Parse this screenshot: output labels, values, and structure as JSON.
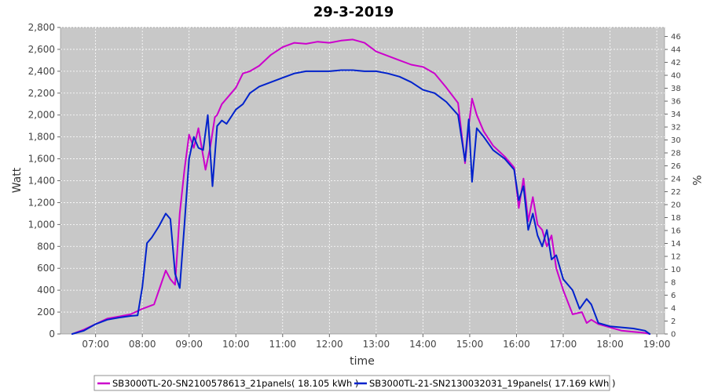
{
  "chart_data": {
    "type": "line",
    "title": "29-3-2019",
    "xlabel": "time",
    "ylabel": "Watt",
    "y2label": "%",
    "xlim": [
      6.25,
      19.1667
    ],
    "ylim": [
      0,
      2800
    ],
    "y2lim": [
      0,
      47.4
    ],
    "x_ticks": [
      7,
      8,
      9,
      10,
      11,
      12,
      13,
      14,
      15,
      16,
      17,
      18,
      19
    ],
    "x_tick_labels": [
      "07:00",
      "08:00",
      "09:00",
      "10:00",
      "11:00",
      "12:00",
      "13:00",
      "14:00",
      "15:00",
      "16:00",
      "17:00",
      "18:00",
      "19:00"
    ],
    "y_ticks": [
      0,
      200,
      400,
      600,
      800,
      1000,
      1200,
      1400,
      1600,
      1800,
      2000,
      2200,
      2400,
      2600,
      2800
    ],
    "y_tick_labels": [
      "0",
      "200",
      "400",
      "600",
      "800",
      "1,000",
      "1,200",
      "1,400",
      "1,600",
      "1,800",
      "2,000",
      "2,200",
      "2,400",
      "2,600",
      "2,800"
    ],
    "y2_ticks": [
      0,
      2,
      4,
      6,
      8,
      10,
      12,
      14,
      16,
      18,
      20,
      22,
      24,
      26,
      28,
      30,
      32,
      34,
      36,
      38,
      40,
      42,
      44,
      46
    ],
    "y2_tick_labels": [
      "0",
      "2",
      "4",
      "6",
      "8",
      "10",
      "12",
      "14",
      "16",
      "18",
      "20",
      "22",
      "24",
      "26",
      "28",
      "30",
      "32",
      "34",
      "36",
      "38",
      "40",
      "42",
      "44",
      "46"
    ],
    "grid": true,
    "legend_position": "bottom",
    "series": [
      {
        "name": "SB3000TL-20-SN2100578613_21panels( 18.105 kWh )",
        "color": "#cc00cc",
        "x": [
          6.5,
          6.75,
          7.0,
          7.25,
          7.5,
          7.75,
          8.0,
          8.25,
          8.5,
          8.6,
          8.7,
          8.8,
          8.9,
          9.0,
          9.1,
          9.2,
          9.25,
          9.35,
          9.45,
          9.55,
          9.6,
          9.7,
          9.8,
          10.0,
          10.15,
          10.3,
          10.5,
          10.75,
          11.0,
          11.25,
          11.5,
          11.75,
          12.0,
          12.25,
          12.5,
          12.75,
          13.0,
          13.25,
          13.5,
          13.75,
          14.0,
          14.25,
          14.5,
          14.75,
          14.9,
          14.98,
          15.05,
          15.15,
          15.3,
          15.5,
          15.75,
          15.95,
          16.05,
          16.15,
          16.25,
          16.35,
          16.45,
          16.55,
          16.65,
          16.75,
          16.85,
          17.0,
          17.2,
          17.4,
          17.5,
          17.6,
          17.75,
          18.0,
          18.25,
          18.5,
          18.75,
          18.85
        ],
        "values": [
          0,
          40,
          90,
          140,
          160,
          180,
          230,
          270,
          580,
          500,
          450,
          1100,
          1500,
          1820,
          1700,
          1880,
          1750,
          1500,
          1700,
          1980,
          2000,
          2100,
          2150,
          2250,
          2380,
          2400,
          2450,
          2550,
          2620,
          2660,
          2650,
          2670,
          2660,
          2680,
          2690,
          2660,
          2580,
          2540,
          2500,
          2460,
          2440,
          2380,
          2250,
          2110,
          1560,
          1900,
          2150,
          2000,
          1850,
          1720,
          1620,
          1520,
          1150,
          1420,
          1030,
          1250,
          1000,
          950,
          800,
          900,
          600,
          400,
          180,
          200,
          100,
          130,
          90,
          60,
          30,
          20,
          10,
          0
        ]
      },
      {
        "name": "SB3000TL-21-SN2130032031_19panels( 17.169 kWh )",
        "color": "#0022cc",
        "x": [
          6.5,
          6.75,
          7.0,
          7.25,
          7.5,
          7.75,
          7.9,
          8.0,
          8.1,
          8.2,
          8.35,
          8.5,
          8.6,
          8.7,
          8.8,
          8.9,
          9.0,
          9.1,
          9.2,
          9.3,
          9.4,
          9.5,
          9.6,
          9.7,
          9.8,
          10.0,
          10.15,
          10.3,
          10.5,
          10.75,
          11.0,
          11.25,
          11.5,
          11.75,
          12.0,
          12.25,
          12.5,
          12.75,
          13.0,
          13.25,
          13.5,
          13.75,
          14.0,
          14.25,
          14.5,
          14.75,
          14.9,
          14.98,
          15.05,
          15.15,
          15.3,
          15.5,
          15.75,
          15.95,
          16.05,
          16.15,
          16.25,
          16.35,
          16.45,
          16.55,
          16.65,
          16.75,
          16.85,
          17.0,
          17.2,
          17.35,
          17.5,
          17.6,
          17.75,
          18.0,
          18.25,
          18.5,
          18.75,
          18.85
        ],
        "values": [
          0,
          30,
          90,
          130,
          150,
          165,
          170,
          430,
          830,
          880,
          980,
          1100,
          1050,
          550,
          420,
          1000,
          1600,
          1800,
          1700,
          1680,
          2000,
          1350,
          1900,
          1950,
          1920,
          2050,
          2100,
          2200,
          2260,
          2300,
          2340,
          2380,
          2400,
          2400,
          2400,
          2410,
          2410,
          2400,
          2400,
          2380,
          2350,
          2300,
          2230,
          2200,
          2120,
          2000,
          1580,
          1960,
          1390,
          1880,
          1800,
          1680,
          1600,
          1500,
          1220,
          1350,
          950,
          1100,
          900,
          800,
          950,
          680,
          720,
          500,
          400,
          230,
          320,
          270,
          100,
          70,
          60,
          50,
          30,
          0
        ]
      }
    ]
  }
}
